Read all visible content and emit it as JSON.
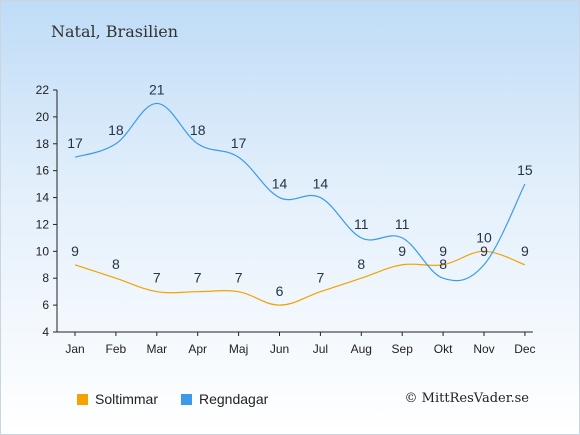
{
  "title": "Natal, Brasilien",
  "copyright": "© MittResVader.se",
  "colors": {
    "sun": "#f5a100",
    "rain": "#3c9be8"
  },
  "chart_data": {
    "type": "line",
    "categories": [
      "Jan",
      "Feb",
      "Mar",
      "Apr",
      "Maj",
      "Jun",
      "Jul",
      "Aug",
      "Sep",
      "Okt",
      "Nov",
      "Dec"
    ],
    "ylim": [
      4,
      22
    ],
    "yticks": [
      4,
      6,
      8,
      10,
      12,
      14,
      16,
      18,
      20,
      22
    ],
    "legend_position": "bottom-left",
    "series": [
      {
        "name": "Soltimmar",
        "values": [
          9,
          8,
          7,
          7,
          7,
          6,
          7,
          8,
          9,
          9,
          10,
          9
        ]
      },
      {
        "name": "Regndagar",
        "values": [
          17,
          18,
          21,
          18,
          17,
          14,
          14,
          11,
          11,
          8,
          9,
          15
        ]
      }
    ]
  }
}
